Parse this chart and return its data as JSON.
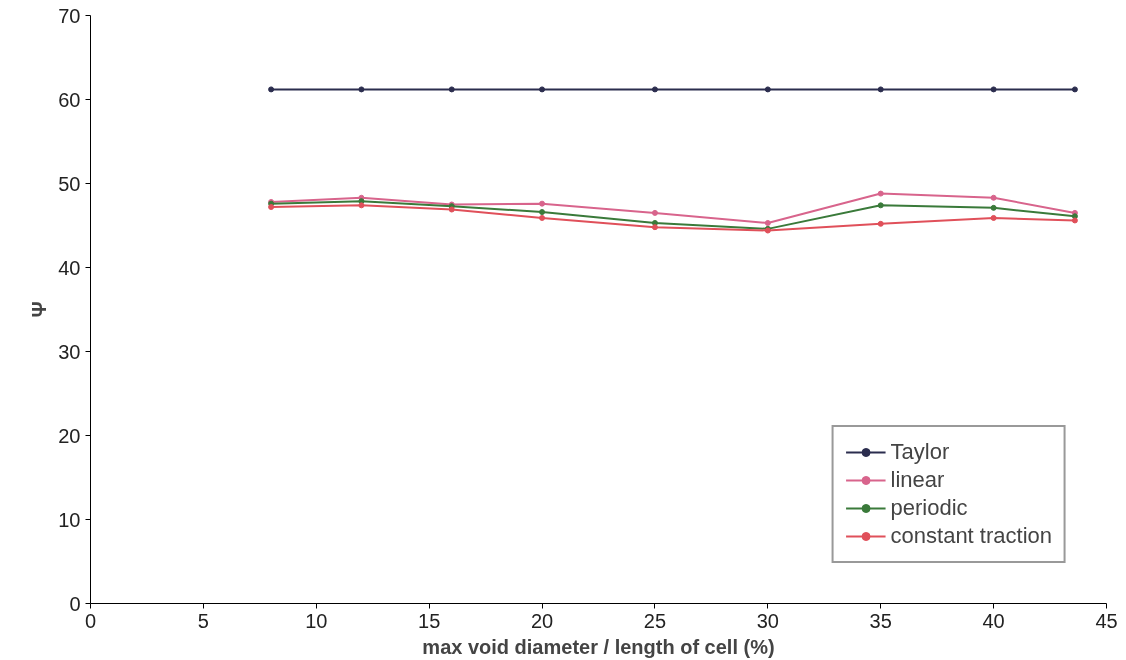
{
  "chart_data": {
    "type": "line",
    "xlabel": "max void diameter / length of cell (%)",
    "ylabel": "Ψ",
    "x": [
      8,
      12,
      16,
      20,
      25,
      30,
      35,
      40,
      43.6
    ],
    "series": [
      {
        "name": "Taylor",
        "color": "#2b2d4e",
        "values": [
          61.2,
          61.2,
          61.2,
          61.2,
          61.2,
          61.2,
          61.2,
          61.2,
          61.2
        ]
      },
      {
        "name": "linear",
        "color": "#d8648c",
        "values": [
          47.8,
          48.3,
          47.5,
          47.6,
          46.5,
          45.3,
          48.8,
          48.3,
          46.5
        ]
      },
      {
        "name": "periodic",
        "color": "#3a7a3a",
        "values": [
          47.6,
          47.9,
          47.3,
          46.6,
          45.3,
          44.6,
          47.4,
          47.1,
          46.1
        ]
      },
      {
        "name": "constant traction",
        "color": "#e0505a",
        "values": [
          47.2,
          47.4,
          46.9,
          45.9,
          44.8,
          44.4,
          45.2,
          45.9,
          45.6
        ]
      }
    ],
    "xlim": [
      0,
      45
    ],
    "xticks": [
      0,
      5,
      10,
      15,
      20,
      25,
      30,
      35,
      40,
      45
    ],
    "ylim": [
      0,
      70
    ],
    "yticks": [
      0,
      10,
      20,
      30,
      40,
      50,
      60,
      70
    ],
    "grid": false,
    "legend": "bottom right",
    "marker": "circle",
    "line_style": "solid"
  }
}
